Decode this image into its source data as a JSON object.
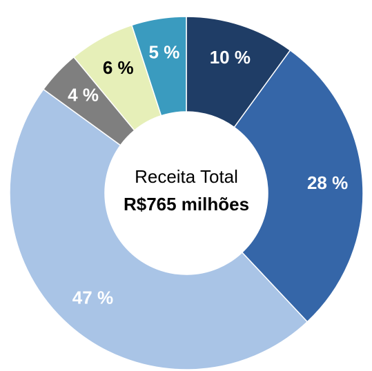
{
  "chart_data": {
    "type": "donut",
    "center_title": "Receita Total",
    "center_value": "R$765 milhões",
    "categories": [
      null,
      null,
      null,
      null,
      null,
      null
    ],
    "values": [
      10,
      28,
      47,
      4,
      6,
      5
    ],
    "value_labels": [
      "10 %",
      "28 %",
      "47 %",
      "4 %",
      "6 %",
      "5 %"
    ],
    "colors": [
      "#1f3d66",
      "#3566a8",
      "#a9c4e6",
      "#7f7f7f",
      "#e6efb8",
      "#3a9bbf"
    ]
  }
}
